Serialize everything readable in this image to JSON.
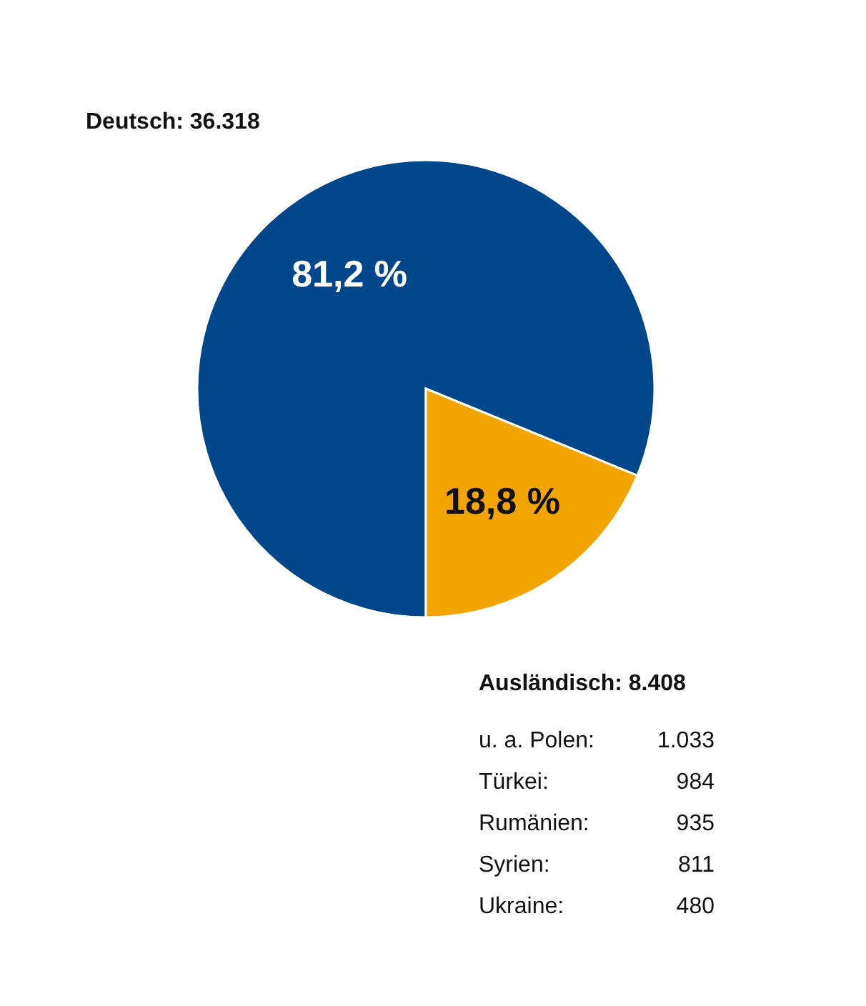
{
  "chart_data": {
    "type": "pie",
    "categories": [
      "Deutsch: 36.318",
      "Ausländisch: 8.408"
    ],
    "values": [
      81.2,
      18.8
    ],
    "colors": [
      "#00468b",
      "#f2a400"
    ],
    "value_labels": [
      "81,2 %",
      "18,8 %"
    ],
    "annotations": [
      "u. a. Polen: 1.033",
      "Türkei: 984",
      "Rumänien: 935",
      "Syrien: 811",
      "Ukraine: 480"
    ]
  }
}
